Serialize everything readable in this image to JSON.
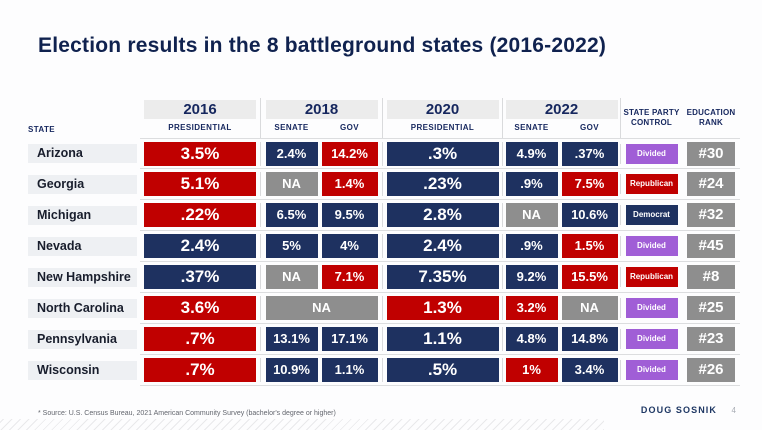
{
  "title": "Election results in the 8 battleground states (2016-2022)",
  "colors": {
    "navy": "#1e3160",
    "red": "#c00000",
    "gray": "#8e8e8e",
    "purple": "#a05ed6"
  },
  "table": {
    "state_header": "STATE",
    "groups": [
      {
        "year": "2016",
        "subs": [
          "PRESIDENTIAL"
        ]
      },
      {
        "year": "2018",
        "subs": [
          "SENATE",
          "GOV"
        ]
      },
      {
        "year": "2020",
        "subs": [
          "PRESIDENTIAL"
        ]
      },
      {
        "year": "2022",
        "subs": [
          "SENATE",
          "GOV"
        ]
      }
    ],
    "party_header": "STATE PARTY CONTROL",
    "education_header": "EDUCATION RANK",
    "rows": [
      {
        "state": "Arizona",
        "p2016": {
          "text": "3.5%",
          "color": "red"
        },
        "s2018": {
          "text": "2.4%",
          "color": "navy"
        },
        "g2018": {
          "text": "14.2%",
          "color": "red"
        },
        "p2020": {
          "text": ".3%",
          "color": "navy"
        },
        "s2022": {
          "text": "4.9%",
          "color": "navy"
        },
        "g2022": {
          "text": ".37%",
          "color": "navy"
        },
        "party": {
          "text": "Divided",
          "color": "purple"
        },
        "rank": "#30"
      },
      {
        "state": "Georgia",
        "p2016": {
          "text": "5.1%",
          "color": "red"
        },
        "s2018": {
          "text": "NA",
          "color": "gray"
        },
        "g2018": {
          "text": "1.4%",
          "color": "red"
        },
        "p2020": {
          "text": ".23%",
          "color": "navy"
        },
        "s2022": {
          "text": ".9%",
          "color": "navy"
        },
        "g2022": {
          "text": "7.5%",
          "color": "red"
        },
        "party": {
          "text": "Republican",
          "color": "red"
        },
        "rank": "#24"
      },
      {
        "state": "Michigan",
        "p2016": {
          "text": ".22%",
          "color": "red"
        },
        "s2018": {
          "text": "6.5%",
          "color": "navy"
        },
        "g2018": {
          "text": "9.5%",
          "color": "navy"
        },
        "p2020": {
          "text": "2.8%",
          "color": "navy"
        },
        "s2022": {
          "text": "NA",
          "color": "gray"
        },
        "g2022": {
          "text": "10.6%",
          "color": "navy"
        },
        "party": {
          "text": "Democrat",
          "color": "navy"
        },
        "rank": "#32"
      },
      {
        "state": "Nevada",
        "p2016": {
          "text": "2.4%",
          "color": "navy"
        },
        "s2018": {
          "text": "5%",
          "color": "navy"
        },
        "g2018": {
          "text": "4%",
          "color": "navy"
        },
        "p2020": {
          "text": "2.4%",
          "color": "navy"
        },
        "s2022": {
          "text": ".9%",
          "color": "navy"
        },
        "g2022": {
          "text": "1.5%",
          "color": "red"
        },
        "party": {
          "text": "Divided",
          "color": "purple"
        },
        "rank": "#45"
      },
      {
        "state": "New Hampshire",
        "p2016": {
          "text": ".37%",
          "color": "navy"
        },
        "s2018": {
          "text": "NA",
          "color": "gray"
        },
        "g2018": {
          "text": "7.1%",
          "color": "red"
        },
        "p2020": {
          "text": "7.35%",
          "color": "navy"
        },
        "s2022": {
          "text": "9.2%",
          "color": "navy"
        },
        "g2022": {
          "text": "15.5%",
          "color": "red"
        },
        "party": {
          "text": "Republican",
          "color": "red"
        },
        "rank": "#8"
      },
      {
        "state": "North Carolina",
        "p2016": {
          "text": "3.6%",
          "color": "red"
        },
        "sg2018": {
          "text": "NA",
          "color": "gray"
        },
        "p2020": {
          "text": "1.3%",
          "color": "red"
        },
        "s2022": {
          "text": "3.2%",
          "color": "red"
        },
        "g2022": {
          "text": "NA",
          "color": "gray"
        },
        "party": {
          "text": "Divided",
          "color": "purple"
        },
        "rank": "#25"
      },
      {
        "state": "Pennsylvania",
        "p2016": {
          "text": ".7%",
          "color": "red"
        },
        "s2018": {
          "text": "13.1%",
          "color": "navy"
        },
        "g2018": {
          "text": "17.1%",
          "color": "navy"
        },
        "p2020": {
          "text": "1.1%",
          "color": "navy"
        },
        "s2022": {
          "text": "4.8%",
          "color": "navy"
        },
        "g2022": {
          "text": "14.8%",
          "color": "navy"
        },
        "party": {
          "text": "Divided",
          "color": "purple"
        },
        "rank": "#23"
      },
      {
        "state": "Wisconsin",
        "p2016": {
          "text": ".7%",
          "color": "red"
        },
        "s2018": {
          "text": "10.9%",
          "color": "navy"
        },
        "g2018": {
          "text": "1.1%",
          "color": "navy"
        },
        "p2020": {
          "text": ".5%",
          "color": "navy"
        },
        "s2022": {
          "text": "1%",
          "color": "red"
        },
        "g2022": {
          "text": "3.4%",
          "color": "navy"
        },
        "party": {
          "text": "Divided",
          "color": "purple"
        },
        "rank": "#26"
      }
    ]
  },
  "footer": {
    "source": "* Source: U.S. Census Bureau, 2021 American Community Survey (bachelor's degree or higher)",
    "author": "DOUG SOSNIK",
    "page": "4"
  }
}
